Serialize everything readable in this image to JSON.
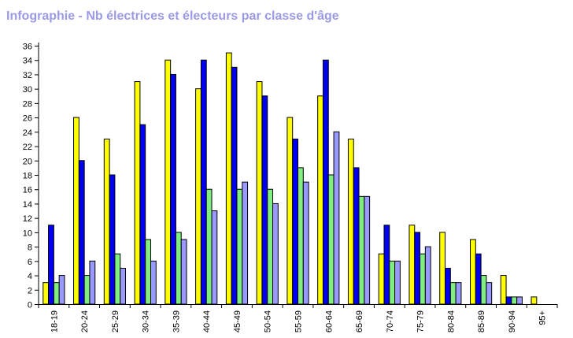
{
  "chart_data": {
    "type": "bar",
    "title": "Infographie - Nb électrices et électeurs par classe d'âge",
    "xlabel": "",
    "ylabel": "",
    "ylim": [
      0,
      36
    ],
    "y_ticks": [
      0,
      2,
      4,
      6,
      8,
      10,
      12,
      14,
      16,
      18,
      20,
      22,
      24,
      26,
      28,
      30,
      32,
      34,
      36
    ],
    "grid": false,
    "categories": [
      "18-19",
      "20-24",
      "25-29",
      "30-34",
      "35-39",
      "40-44",
      "45-49",
      "50-54",
      "55-59",
      "60-64",
      "65-69",
      "70-74",
      "75-79",
      "80-84",
      "85-89",
      "90-94",
      "95+"
    ],
    "series": [
      {
        "color": "#ffff00",
        "values": [
          3,
          26,
          23,
          31,
          34,
          30,
          35,
          31,
          26,
          29,
          23,
          7,
          11,
          10,
          9,
          4,
          1
        ]
      },
      {
        "color": "#0000ee",
        "values": [
          11,
          20,
          18,
          25,
          32,
          34,
          33,
          29,
          23,
          34,
          19,
          11,
          10,
          5,
          7,
          1,
          0
        ]
      },
      {
        "color": "#80ee80",
        "values": [
          3,
          4,
          7,
          9,
          10,
          16,
          16,
          16,
          19,
          18,
          15,
          6,
          7,
          3,
          4,
          1,
          0
        ]
      },
      {
        "color": "#9999ff",
        "values": [
          4,
          6,
          5,
          6,
          9,
          13,
          17,
          14,
          17,
          24,
          15,
          6,
          8,
          3,
          3,
          1,
          0
        ]
      }
    ]
  }
}
